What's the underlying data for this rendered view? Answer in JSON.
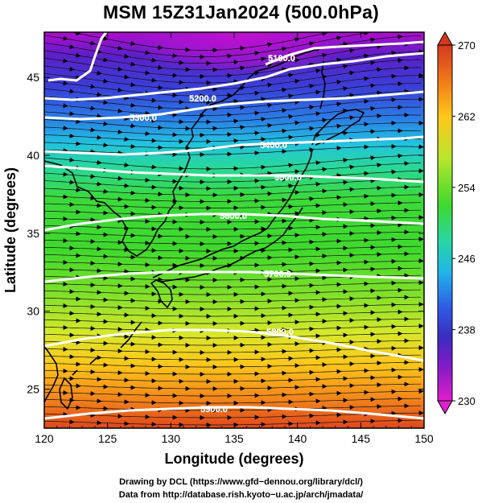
{
  "title": "MSM 15Z31Jan2024 (500.0hPa)",
  "map": {
    "xlabel": "Longitude (degrees)",
    "ylabel": "Latitude  (degrees)",
    "lon_range": [
      120,
      150
    ],
    "lat_range": [
      22.5,
      47.9
    ],
    "lon_ticks": [
      "120",
      "125",
      "130",
      "135",
      "140",
      "145",
      "150"
    ],
    "lat_ticks": [
      "25",
      "30",
      "35",
      "40",
      "45"
    ],
    "fill_variable_range": [
      230,
      270
    ],
    "vectors": "streamlines, predominantly westerly",
    "coastline_color": "#000000"
  },
  "colorbar": {
    "labels": [
      "270",
      "262",
      "254",
      "246",
      "238",
      "230"
    ],
    "values": [
      270,
      262,
      254,
      246,
      238,
      230
    ],
    "colors": [
      "#d4381f",
      "#f07a18",
      "#ffc61a",
      "#b6e62c",
      "#3ed92e",
      "#28d6a5",
      "#20b4e8",
      "#2f5ae4",
      "#3a2cc0",
      "#8a1bc6",
      "#e11fce"
    ],
    "extend_arrows": "both"
  },
  "contours": {
    "color": "#ffffff",
    "labels": [
      "5100.0",
      "5200.0",
      "5300.0",
      "5400.0",
      "5500.0",
      "5600.0",
      "5700.0",
      "5800.0",
      "5900.0"
    ]
  },
  "credits": {
    "line1": "Drawing by DCL (https://www.gfd−dennou.org/library/dcl/)",
    "line2": "Data from http://database.rish.kyoto−u.ac.jp/arch/jmadata/"
  }
}
